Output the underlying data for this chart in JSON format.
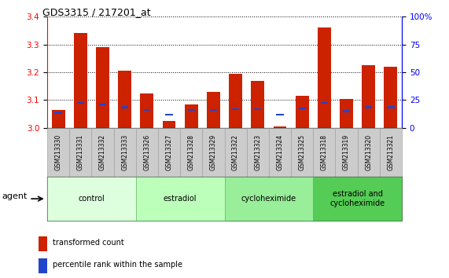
{
  "title": "GDS3315 / 217201_at",
  "samples": [
    "GSM213330",
    "GSM213331",
    "GSM213332",
    "GSM213333",
    "GSM213326",
    "GSM213327",
    "GSM213328",
    "GSM213329",
    "GSM213322",
    "GSM213323",
    "GSM213324",
    "GSM213325",
    "GSM213318",
    "GSM213319",
    "GSM213320",
    "GSM213321"
  ],
  "red_values": [
    3.065,
    3.34,
    3.29,
    3.205,
    3.125,
    3.025,
    3.085,
    3.13,
    3.195,
    3.17,
    3.005,
    3.115,
    3.36,
    3.105,
    3.225,
    3.22
  ],
  "blue_values": [
    3.055,
    3.09,
    3.085,
    3.075,
    3.065,
    3.048,
    3.065,
    3.065,
    3.068,
    3.068,
    3.048,
    3.07,
    3.09,
    3.06,
    3.075,
    3.075
  ],
  "ylim": [
    3.0,
    3.4
  ],
  "yticks": [
    3.0,
    3.1,
    3.2,
    3.3,
    3.4
  ],
  "right_yticks": [
    0,
    25,
    50,
    75,
    100
  ],
  "groups": [
    {
      "label": "control",
      "start": 0,
      "end": 4,
      "color": "#ddffdd"
    },
    {
      "label": "estradiol",
      "start": 4,
      "end": 8,
      "color": "#bbffbb"
    },
    {
      "label": "cycloheximide",
      "start": 8,
      "end": 12,
      "color": "#99ee99"
    },
    {
      "label": "estradiol and\ncycloheximide",
      "start": 12,
      "end": 16,
      "color": "#66dd66"
    }
  ],
  "bar_color_red": "#cc2200",
  "bar_color_blue": "#2244cc",
  "bar_width": 0.6,
  "agent_label": "agent",
  "legend_red": "transformed count",
  "legend_blue": "percentile rank within the sample",
  "gray_cell": "#cccccc",
  "cell_border": "#999999",
  "green_border": "#66aa66"
}
